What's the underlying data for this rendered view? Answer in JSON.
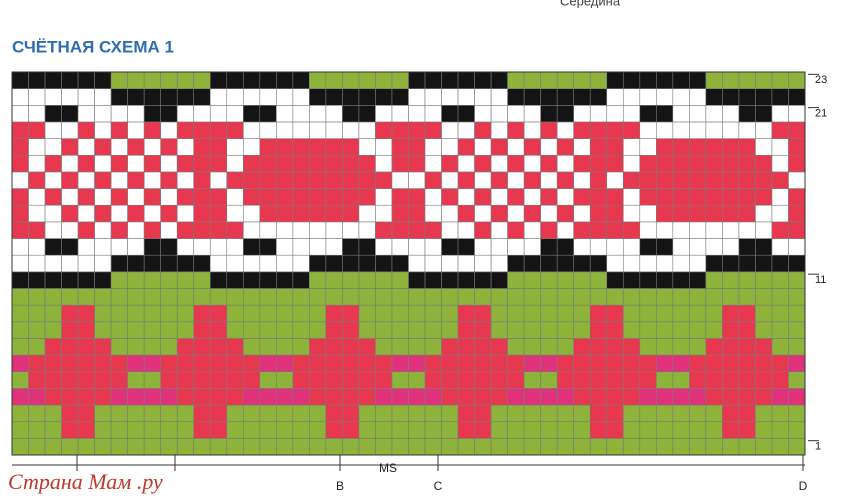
{
  "header": {
    "title": "СЧЁТНАЯ СХЕМА 1",
    "top_note": "Середина"
  },
  "row_labels": [
    "23",
    "21",
    "11",
    "1"
  ],
  "column_labels": [
    "B",
    "C",
    "D"
  ],
  "span_label": "MS",
  "watermark": "Страна Мам .ру"
}
